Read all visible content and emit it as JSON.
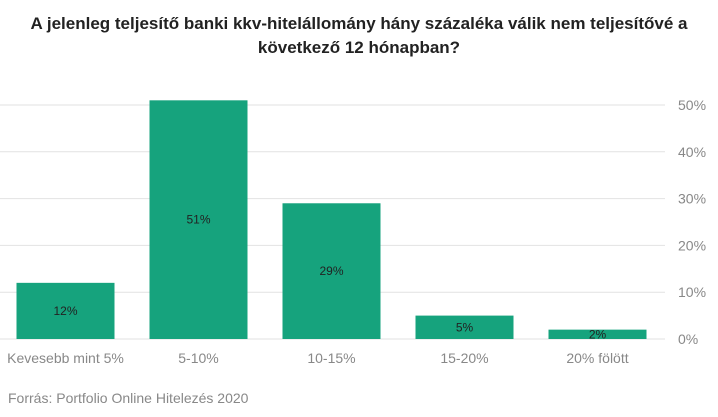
{
  "title_lines": [
    "A jelenleg teljesítő banki kkv-hitelállomány hány százaléka válik nem teljesítővé a",
    "következő 12 hónapban?"
  ],
  "source": "Forrás: Portfolio Online Hitelezés 2020",
  "colors": {
    "bar": "#16a37d",
    "grid": "#e2e2e2",
    "axis_text": "#888888",
    "label_text": "#222222"
  },
  "chart_data": {
    "type": "bar",
    "title": "A jelenleg teljesítő banki kkv-hitelállomány hány százaléka válik nem teljesítővé a következő 12 hónapban?",
    "categories": [
      "Kevesebb mint 5%",
      "5-10%",
      "10-15%",
      "15-20%",
      "20% fölött"
    ],
    "values": [
      12,
      51,
      29,
      5,
      2
    ],
    "data_labels": [
      "12%",
      "51%",
      "29%",
      "5%",
      "2%"
    ],
    "ylim": [
      0,
      50
    ],
    "yticks": [
      0,
      10,
      20,
      30,
      40,
      50
    ],
    "ytick_labels": [
      "0%",
      "10%",
      "20%",
      "30%",
      "40%",
      "50%"
    ],
    "y_axis_side": "right",
    "grid": true,
    "xlabel": "",
    "ylabel": ""
  }
}
